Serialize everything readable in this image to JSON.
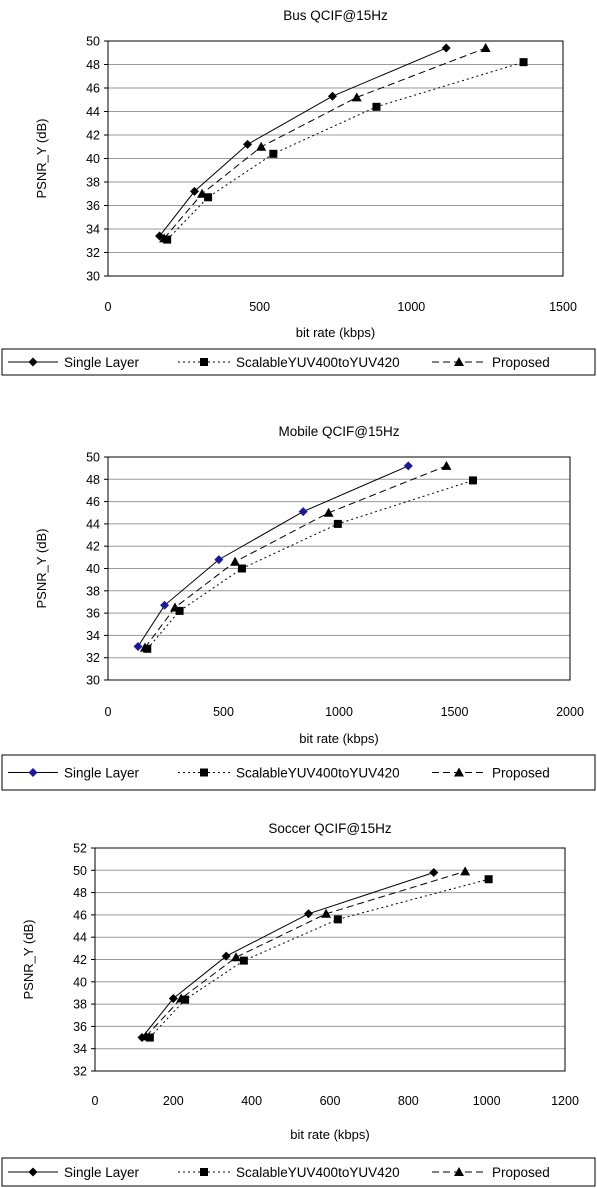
{
  "chart_data": [
    {
      "type": "line",
      "title": "Bus QCIF@15Hz",
      "xlabel": "bit rate (kbps)",
      "ylabel": "PSNR_Y (dB)",
      "xlim": [
        0,
        1500
      ],
      "ylim": [
        30,
        50
      ],
      "xticks": [
        0,
        500,
        1000,
        1500
      ],
      "yticks": [
        30,
        32,
        34,
        36,
        38,
        40,
        42,
        44,
        46,
        48,
        50
      ],
      "grid": "horizontal",
      "legend": "bottom",
      "series": [
        {
          "name": "Single Layer",
          "marker": "diamond",
          "dash": "solid",
          "color": "#000000",
          "x": [
            170,
            285,
            460,
            740,
            1115
          ],
          "y": [
            33.4,
            37.2,
            41.2,
            45.3,
            49.4
          ]
        },
        {
          "name": "ScalableYUV400toYUV420",
          "marker": "square",
          "dash": "dotted",
          "color": "#000000",
          "x": [
            195,
            330,
            545,
            885,
            1370
          ],
          "y": [
            33.1,
            36.7,
            40.4,
            44.4,
            48.2
          ]
        },
        {
          "name": "Proposed",
          "marker": "triangle",
          "dash": "dashed",
          "color": "#000000",
          "x": [
            185,
            310,
            505,
            820,
            1245
          ],
          "y": [
            33.2,
            37.0,
            41.0,
            45.2,
            49.4
          ]
        }
      ]
    },
    {
      "type": "line",
      "title": "Mobile QCIF@15Hz",
      "xlabel": "bit rate (kbps)",
      "ylabel": "PSNR_Y (dB)",
      "xlim": [
        0,
        2000
      ],
      "ylim": [
        30,
        50
      ],
      "xticks": [
        0,
        500,
        1000,
        1500,
        2000
      ],
      "yticks": [
        30,
        32,
        34,
        36,
        38,
        40,
        42,
        44,
        46,
        48,
        50
      ],
      "grid": "horizontal",
      "legend": "bottom",
      "series": [
        {
          "name": "Single Layer",
          "marker": "diamond",
          "dash": "solid",
          "color": "#1a1aa0",
          "x": [
            130,
            245,
            480,
            845,
            1300
          ],
          "y": [
            33.0,
            36.7,
            40.8,
            45.1,
            49.2
          ]
        },
        {
          "name": "ScalableYUV400toYUV420",
          "marker": "square",
          "dash": "dotted",
          "color": "#000000",
          "x": [
            170,
            310,
            580,
            995,
            1580
          ],
          "y": [
            32.8,
            36.2,
            40.0,
            44.0,
            47.9
          ]
        },
        {
          "name": "Proposed",
          "marker": "triangle",
          "dash": "dashed",
          "color": "#000000",
          "x": [
            160,
            290,
            550,
            955,
            1465
          ],
          "y": [
            32.9,
            36.5,
            40.6,
            45.0,
            49.2
          ]
        }
      ]
    },
    {
      "type": "line",
      "title": "Soccer QCIF@15Hz",
      "xlabel": "bit rate (kbps)",
      "ylabel": "PSNR_Y (dB)",
      "xlim": [
        0,
        1200
      ],
      "ylim": [
        32,
        52
      ],
      "xticks": [
        0,
        200,
        400,
        600,
        800,
        1000,
        1200
      ],
      "yticks": [
        32,
        34,
        36,
        38,
        40,
        42,
        44,
        46,
        48,
        50,
        52
      ],
      "grid": "horizontal",
      "legend": "bottom",
      "series": [
        {
          "name": "Single Layer",
          "marker": "diamond",
          "dash": "solid",
          "color": "#000000",
          "x": [
            120,
            200,
            335,
            545,
            865
          ],
          "y": [
            35.0,
            38.5,
            42.3,
            46.1,
            49.8
          ]
        },
        {
          "name": "ScalableYUV400toYUV420",
          "marker": "square",
          "dash": "dotted",
          "color": "#000000",
          "x": [
            140,
            230,
            380,
            620,
            1005
          ],
          "y": [
            35.0,
            38.4,
            41.9,
            45.6,
            49.2
          ]
        },
        {
          "name": "Proposed",
          "marker": "triangle",
          "dash": "dashed",
          "color": "#000000",
          "x": [
            130,
            220,
            360,
            590,
            945
          ],
          "y": [
            35.1,
            38.5,
            42.2,
            46.1,
            49.9
          ]
        }
      ]
    }
  ]
}
